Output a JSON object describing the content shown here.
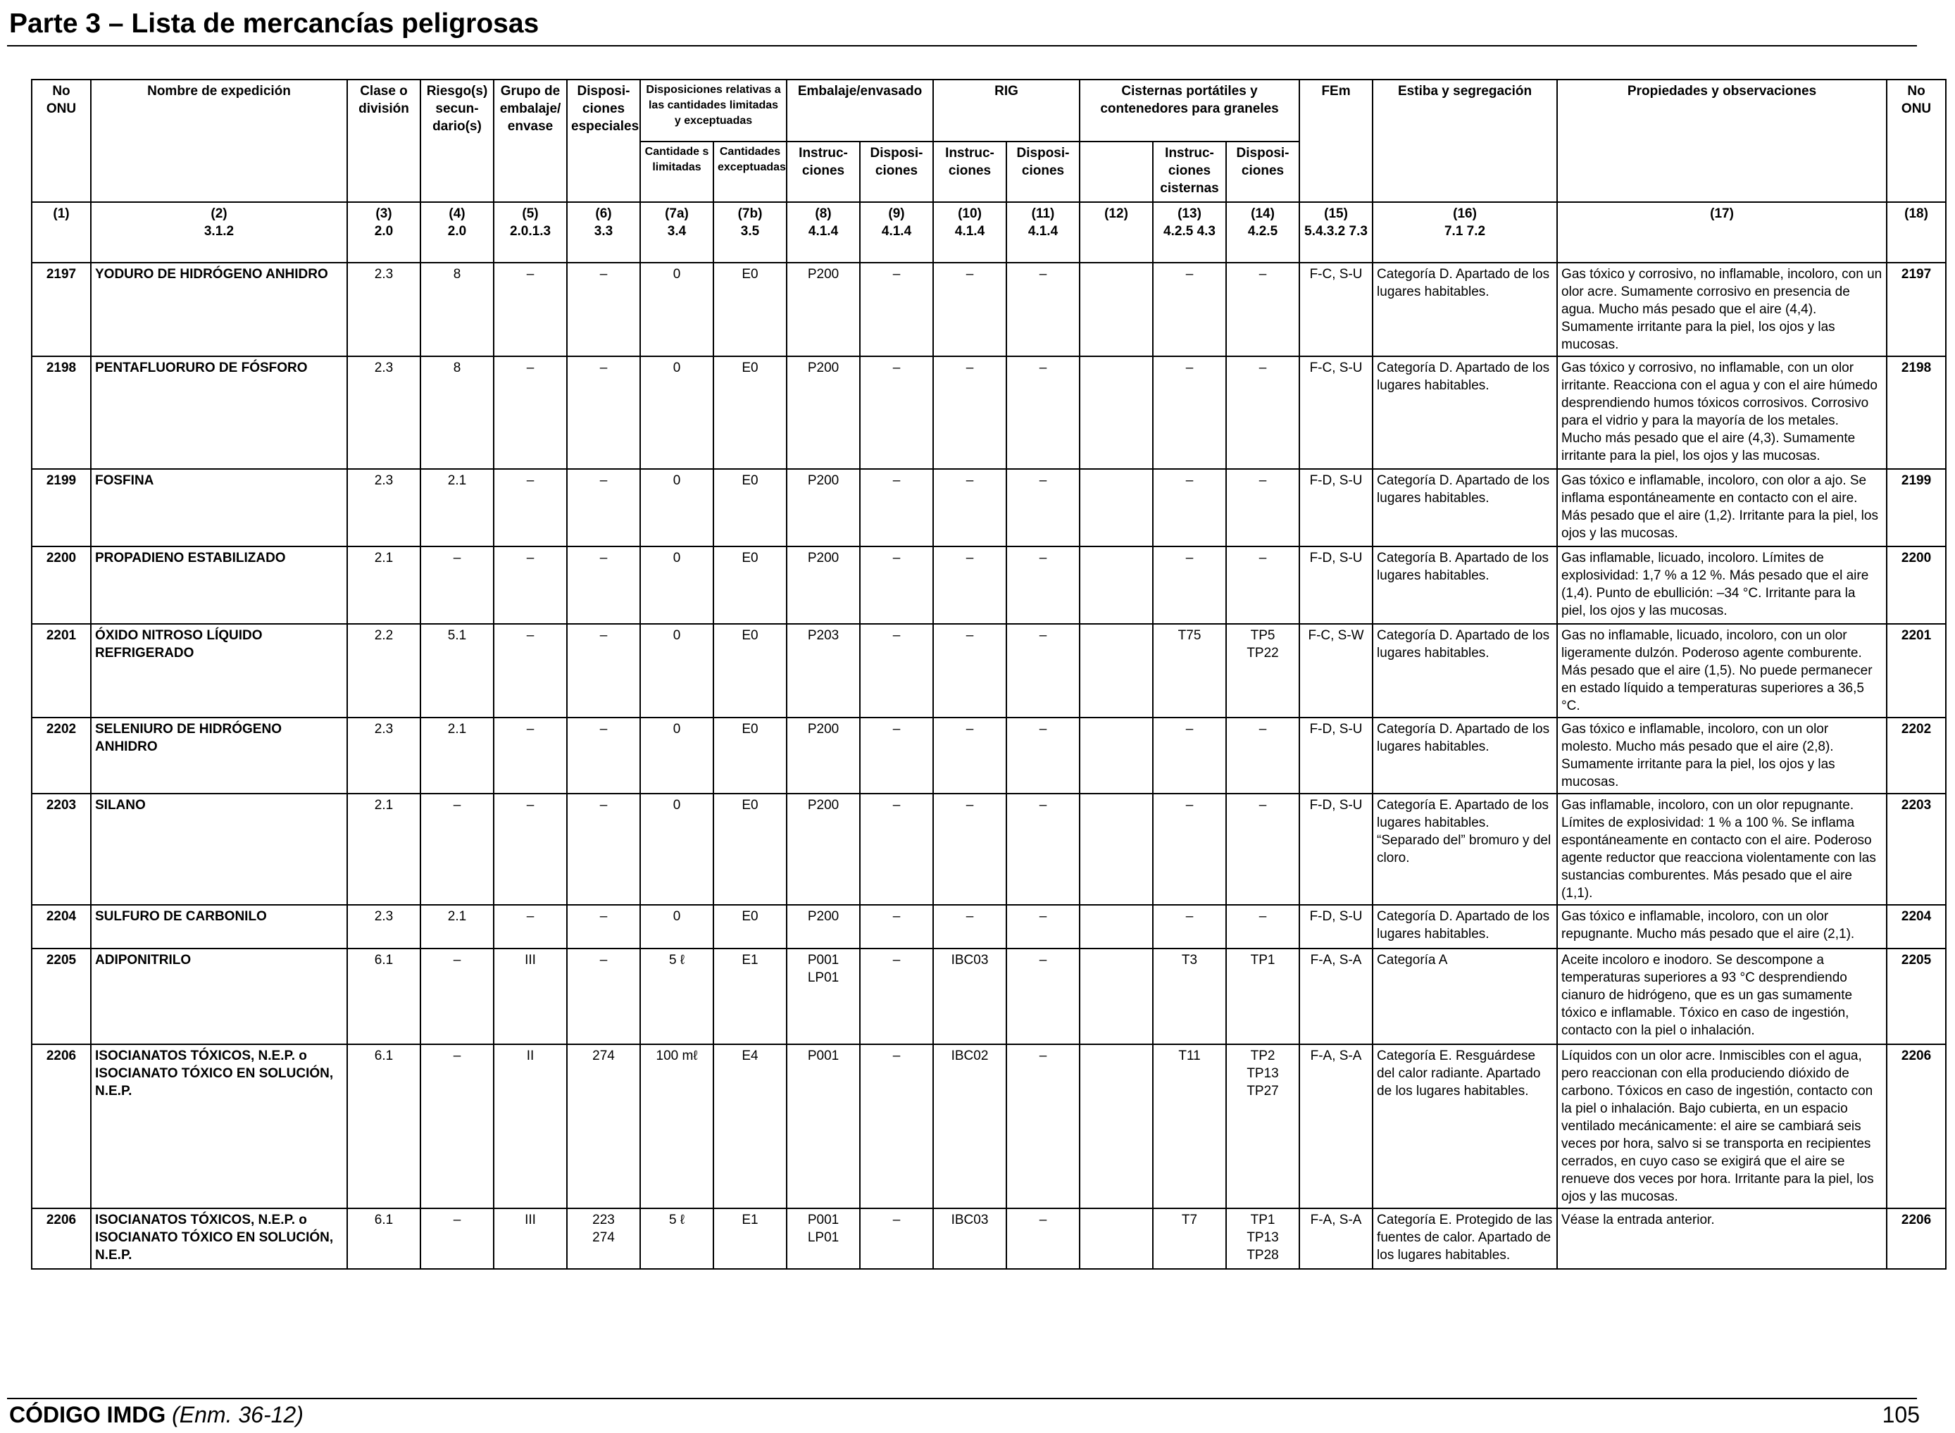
{
  "page": {
    "title": "Parte 3 – Lista de mercancías peligrosas",
    "footer_code": "CÓDIGO IMDG",
    "footer_edition": "(Enm. 36-12)",
    "page_number": "105"
  },
  "headers": {
    "c1": "No ONU",
    "c2": "Nombre de expedición",
    "c3": "Clase o división",
    "c4": "Riesgo(s) secun-dario(s)",
    "c5": "Grupo de embalaje/ envase",
    "c6": "Disposi-ciones especiales",
    "c7": "Disposiciones relativas a las cantidades limitadas y exceptuadas",
    "c7a": "Cantidade s limitadas",
    "c7b": "Cantidades exceptuadas",
    "c8_9": "Embalaje/envasado",
    "c8": "Instruc-ciones",
    "c9": "Disposi-ciones",
    "c10_11": "RIG",
    "c10": "Instruc-ciones",
    "c11": "Disposi-ciones",
    "c12_14": "Cisternas portátiles y contenedores para graneles",
    "c13": "Instruc-ciones cisternas",
    "c14": "Disposi-ciones",
    "c15": "FEm",
    "c16": "Estiba y segregación",
    "c17": "Propiedades y observaciones",
    "c18": "No ONU"
  },
  "refs": [
    {
      "n": "(1)",
      "r": ""
    },
    {
      "n": "(2)",
      "r": "3.1.2"
    },
    {
      "n": "(3)",
      "r": "2.0"
    },
    {
      "n": "(4)",
      "r": "2.0"
    },
    {
      "n": "(5)",
      "r": "2.0.1.3"
    },
    {
      "n": "(6)",
      "r": "3.3"
    },
    {
      "n": "(7a)",
      "r": "3.4"
    },
    {
      "n": "(7b)",
      "r": "3.5"
    },
    {
      "n": "(8)",
      "r": "4.1.4"
    },
    {
      "n": "(9)",
      "r": "4.1.4"
    },
    {
      "n": "(10)",
      "r": "4.1.4"
    },
    {
      "n": "(11)",
      "r": "4.1.4"
    },
    {
      "n": "(12)",
      "r": ""
    },
    {
      "n": "(13)",
      "r": "4.2.5 4.3"
    },
    {
      "n": "(14)",
      "r": "4.2.5"
    },
    {
      "n": "(15)",
      "r": "5.4.3.2 7.3"
    },
    {
      "n": "(16)",
      "r": "7.1 7.2"
    },
    {
      "n": "(17)",
      "r": ""
    },
    {
      "n": "(18)",
      "r": ""
    }
  ],
  "rows": [
    {
      "un": "2197",
      "name": "YODURO DE HIDRÓGENO ANHIDRO",
      "cls": "2.3",
      "sub": "8",
      "pg": "–",
      "sp": "–",
      "lq": "0",
      "eq": "E0",
      "pi": "P200",
      "pp": "–",
      "ibc": "–",
      "ibcp": "–",
      "c12": "",
      "tank": "–",
      "tankp": "–",
      "ems": "F-C, S-U",
      "stow": "Categoría D. Apartado de los lugares habitables.",
      "props": "Gas tóxico y corrosivo, no inflamable, incoloro, con un olor acre. Sumamente corrosivo en presencia de agua. Mucho más pesado que el aire (4,4). Sumamente irritante para la piel, los ojos y las mucosas.",
      "un2": "2197"
    },
    {
      "un": "2198",
      "name": "PENTAFLUORURO DE FÓSFORO",
      "cls": "2.3",
      "sub": "8",
      "pg": "–",
      "sp": "–",
      "lq": "0",
      "eq": "E0",
      "pi": "P200",
      "pp": "–",
      "ibc": "–",
      "ibcp": "–",
      "c12": "",
      "tank": "–",
      "tankp": "–",
      "ems": "F-C, S-U",
      "stow": "Categoría D. Apartado de los lugares habitables.",
      "props": "Gas tóxico y corrosivo, no inflamable, con un olor irritante. Reacciona con el agua y con el aire húmedo desprendiendo humos tóxicos corrosivos. Corrosivo para el vidrio y para la mayoría de los metales. Mucho más pesado que el aire (4,3). Sumamente irritante para la piel, los ojos y las mucosas.",
      "un2": "2198"
    },
    {
      "un": "2199",
      "name": "FOSFINA",
      "cls": "2.3",
      "sub": "2.1",
      "pg": "–",
      "sp": "–",
      "lq": "0",
      "eq": "E0",
      "pi": "P200",
      "pp": "–",
      "ibc": "–",
      "ibcp": "–",
      "c12": "",
      "tank": "–",
      "tankp": "–",
      "ems": "F-D, S-U",
      "stow": "Categoría D. Apartado de los lugares habitables.",
      "props": "Gas tóxico e inflamable, incoloro, con olor a ajo. Se inflama espontáneamente en contacto con el aire. Más pesado que el aire (1,2). Irritante para la piel, los ojos y las mucosas.",
      "un2": "2199"
    },
    {
      "un": "2200",
      "name": "PROPADIENO ESTABILIZADO",
      "cls": "2.1",
      "sub": "–",
      "pg": "–",
      "sp": "–",
      "lq": "0",
      "eq": "E0",
      "pi": "P200",
      "pp": "–",
      "ibc": "–",
      "ibcp": "–",
      "c12": "",
      "tank": "–",
      "tankp": "–",
      "ems": "F-D, S-U",
      "stow": "Categoría B. Apartado de los lugares habitables.",
      "props": "Gas inflamable, licuado, incoloro. Límites de explosividad: 1,7 % a 12 %. Más pesado que el aire (1,4). Punto de ebullición: –34 °C. Irritante para la piel, los ojos y las mucosas.",
      "un2": "2200"
    },
    {
      "un": "2201",
      "name": "ÓXIDO NITROSO LÍQUIDO REFRIGERADO",
      "cls": "2.2",
      "sub": "5.1",
      "pg": "–",
      "sp": "–",
      "lq": "0",
      "eq": "E0",
      "pi": "P203",
      "pp": "–",
      "ibc": "–",
      "ibcp": "–",
      "c12": "",
      "tank": "T75",
      "tankp": "TP5\nTP22",
      "ems": "F-C, S-W",
      "stow": "Categoría D. Apartado de los lugares habitables.",
      "props": "Gas no inflamable, licuado, incoloro, con un olor ligeramente dulzón. Poderoso agente comburente. Más pesado que el aire (1,5). No puede permanecer en estado líquido a temperaturas superiores a 36,5 °C.",
      "un2": "2201"
    },
    {
      "un": "2202",
      "name": "SELENIURO DE HIDRÓGENO ANHIDRO",
      "cls": "2.3",
      "sub": "2.1",
      "pg": "–",
      "sp": "–",
      "lq": "0",
      "eq": "E0",
      "pi": "P200",
      "pp": "–",
      "ibc": "–",
      "ibcp": "–",
      "c12": "",
      "tank": "–",
      "tankp": "–",
      "ems": "F-D, S-U",
      "stow": "Categoría D. Apartado de los lugares habitables.",
      "props": "Gas tóxico e inflamable, incoloro, con un olor molesto. Mucho más pesado que el aire (2,8). Sumamente irritante para la piel, los ojos y las mucosas.",
      "un2": "2202"
    },
    {
      "un": "2203",
      "name": "SILANO",
      "cls": "2.1",
      "sub": "–",
      "pg": "–",
      "sp": "–",
      "lq": "0",
      "eq": "E0",
      "pi": "P200",
      "pp": "–",
      "ibc": "–",
      "ibcp": "–",
      "c12": "",
      "tank": "–",
      "tankp": "–",
      "ems": "F-D, S-U",
      "stow": "Categoría E. Apartado de los lugares habitables. “Separado del” bromuro y del cloro.",
      "props": "Gas inflamable, incoloro, con un olor repugnante. Límites de explosividad: 1 % a 100 %. Se inflama espontáneamente en contacto con el aire. Poderoso agente reductor que reacciona violentamente con las sustancias comburentes. Más pesado que el aire (1,1).",
      "un2": "2203"
    },
    {
      "un": "2204",
      "name": "SULFURO DE CARBONILO",
      "cls": "2.3",
      "sub": "2.1",
      "pg": "–",
      "sp": "–",
      "lq": "0",
      "eq": "E0",
      "pi": "P200",
      "pp": "–",
      "ibc": "–",
      "ibcp": "–",
      "c12": "",
      "tank": "–",
      "tankp": "–",
      "ems": "F-D, S-U",
      "stow": "Categoría D. Apartado de los lugares habitables.",
      "props": "Gas tóxico e inflamable, incoloro, con un olor repugnante. Mucho más pesado que el aire (2,1).",
      "un2": "2204"
    },
    {
      "un": "2205",
      "name": "ADIPONITRILO",
      "cls": "6.1",
      "sub": "–",
      "pg": "III",
      "sp": "–",
      "lq": "5 ℓ",
      "eq": "E1",
      "pi": "P001\nLP01",
      "pp": "–",
      "ibc": "IBC03",
      "ibcp": "–",
      "c12": "",
      "tank": "T3",
      "tankp": "TP1",
      "ems": "F-A, S-A",
      "stow": "Categoría A",
      "props": "Aceite incoloro e inodoro. Se descompone a temperaturas superiores a 93 °C desprendiendo cianuro de hidrógeno, que es un gas sumamente tóxico e inflamable. Tóxico en caso de ingestión, contacto con la piel o inhalación.",
      "un2": "2205"
    },
    {
      "un": "2206",
      "name": "ISOCIANATOS TÓXICOS, N.E.P. o ISOCIANATO TÓXICO EN SOLUCIÓN, N.E.P.",
      "cls": "6.1",
      "sub": "–",
      "pg": "II",
      "sp": "274",
      "lq": "100 mℓ",
      "eq": "E4",
      "pi": "P001",
      "pp": "–",
      "ibc": "IBC02",
      "ibcp": "–",
      "c12": "",
      "tank": "T11",
      "tankp": "TP2\nTP13\nTP27",
      "ems": "F-A, S-A",
      "stow": "Categoría E. Resguárdese del calor radiante. Apartado de los lugares habitables.",
      "props": "Líquidos con un olor acre. Inmiscibles con el agua, pero reaccionan con ella produciendo dióxido de carbono. Tóxicos en caso de ingestión, contacto con la piel o inhalación. Bajo cubierta, en un espacio ventilado mecánicamente: el aire se cambiará seis veces por hora, salvo si se transporta en recipientes cerrados, en cuyo caso se exigirá que el aire se renueve dos veces por hora. Irritante para la piel, los ojos y las mucosas.",
      "un2": "2206"
    },
    {
      "un": "2206",
      "name": "ISOCIANATOS TÓXICOS, N.E.P. o ISOCIANATO TÓXICO EN SOLUCIÓN, N.E.P.",
      "cls": "6.1",
      "sub": "–",
      "pg": "III",
      "sp": "223\n274",
      "lq": "5 ℓ",
      "eq": "E1",
      "pi": "P001\nLP01",
      "pp": "–",
      "ibc": "IBC03",
      "ibcp": "–",
      "c12": "",
      "tank": "T7",
      "tankp": "TP1\nTP13\nTP28",
      "ems": "F-A, S-A",
      "stow": "Categoría E. Protegido de las fuentes de calor. Apartado de los lugares habitables.",
      "props": "Véase la entrada anterior.",
      "un2": "2206"
    }
  ]
}
